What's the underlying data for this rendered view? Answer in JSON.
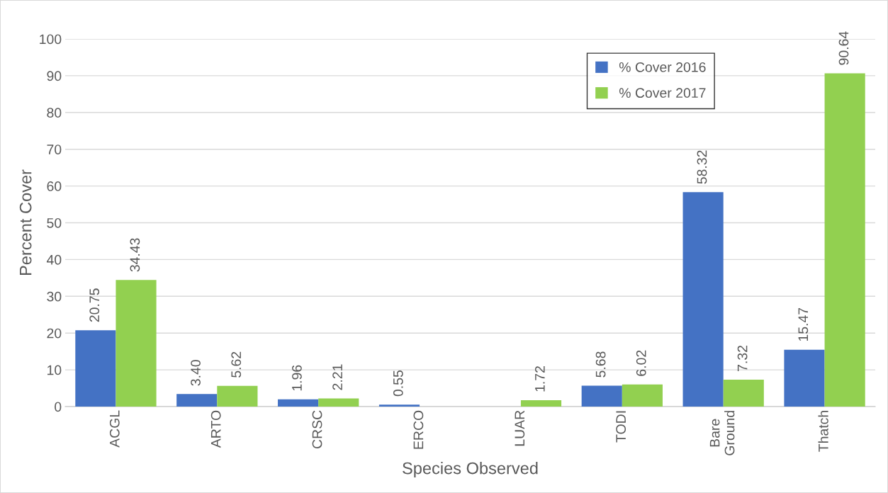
{
  "chart_data": {
    "type": "bar",
    "xlabel": "Species Observed",
    "ylabel": "Percent Cover",
    "categories": [
      "ACGL",
      "ARTO",
      "CRSC",
      "ERCO",
      "LUAR",
      "TODI",
      "Bare\nGround",
      "Thatch"
    ],
    "series": [
      {
        "name": "% Cover 2016",
        "color": "#4472c4",
        "values": [
          20.75,
          3.4,
          1.96,
          0.55,
          null,
          5.68,
          58.32,
          15.47
        ],
        "value_labels": [
          "20.75",
          "3.40",
          "1.96",
          "0.55",
          null,
          "5.68",
          "58.32",
          "15.47"
        ]
      },
      {
        "name": "% Cover 2017",
        "color": "#92d050",
        "values": [
          34.43,
          5.62,
          2.21,
          null,
          1.72,
          6.02,
          7.32,
          90.64
        ],
        "value_labels": [
          "34.43",
          "5.62",
          "2.21",
          null,
          "1.72",
          "6.02",
          "7.32",
          "90.64"
        ]
      }
    ],
    "ylim": [
      0,
      100
    ],
    "yticks": [
      0,
      10,
      20,
      30,
      40,
      50,
      60,
      70,
      80,
      90,
      100
    ],
    "grid": "y",
    "legend": "top right"
  }
}
